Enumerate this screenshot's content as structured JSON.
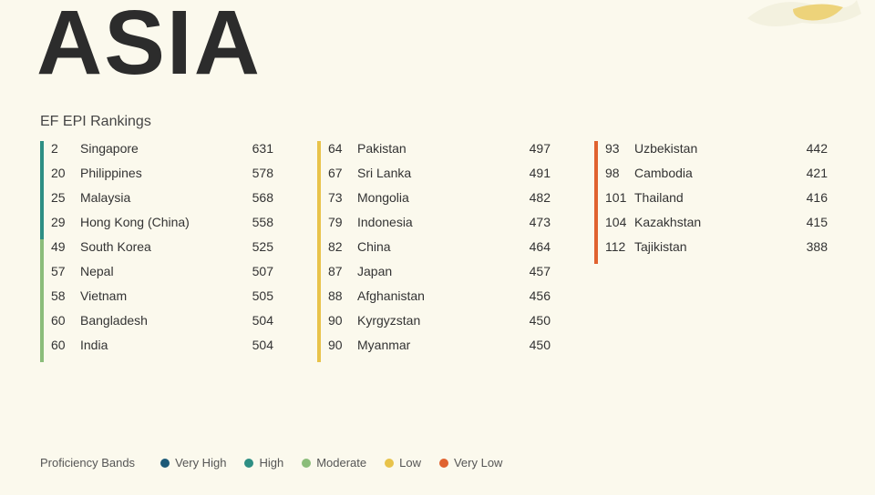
{
  "title": "ASIA",
  "subtitle": "EF EPI Rankings",
  "band_colors": {
    "very_high": "#1d5a78",
    "high": "#2e8f84",
    "moderate": "#8bbd7a",
    "low": "#e8c34a",
    "very_low": "#e0622f"
  },
  "columns": [
    {
      "groups": [
        {
          "band": "high",
          "rows": [
            {
              "rank": "2",
              "country": "Singapore",
              "score": "631"
            },
            {
              "rank": "20",
              "country": "Philippines",
              "score": "578"
            },
            {
              "rank": "25",
              "country": "Malaysia",
              "score": "568"
            },
            {
              "rank": "29",
              "country": "Hong Kong (China)",
              "score": "558"
            }
          ]
        },
        {
          "band": "moderate",
          "rows": [
            {
              "rank": "49",
              "country": "South Korea",
              "score": "525"
            },
            {
              "rank": "57",
              "country": "Nepal",
              "score": "507"
            },
            {
              "rank": "58",
              "country": "Vietnam",
              "score": "505"
            },
            {
              "rank": "60",
              "country": "Bangladesh",
              "score": "504"
            },
            {
              "rank": "60",
              "country": "India",
              "score": "504"
            }
          ]
        }
      ]
    },
    {
      "groups": [
        {
          "band": "low",
          "rows": [
            {
              "rank": "64",
              "country": "Pakistan",
              "score": "497"
            },
            {
              "rank": "67",
              "country": "Sri Lanka",
              "score": "491"
            },
            {
              "rank": "73",
              "country": "Mongolia",
              "score": "482"
            },
            {
              "rank": "79",
              "country": "Indonesia",
              "score": "473"
            },
            {
              "rank": "82",
              "country": "China",
              "score": "464"
            },
            {
              "rank": "87",
              "country": "Japan",
              "score": "457"
            },
            {
              "rank": "88",
              "country": "Afghanistan",
              "score": "456"
            },
            {
              "rank": "90",
              "country": "Kyrgyzstan",
              "score": "450"
            },
            {
              "rank": "90",
              "country": "Myanmar",
              "score": "450"
            }
          ]
        }
      ]
    },
    {
      "groups": [
        {
          "band": "very_low",
          "rows": [
            {
              "rank": "93",
              "country": "Uzbekistan",
              "score": "442"
            },
            {
              "rank": "98",
              "country": "Cambodia",
              "score": "421"
            },
            {
              "rank": "101",
              "country": "Thailand",
              "score": "416"
            },
            {
              "rank": "104",
              "country": "Kazakhstan",
              "score": "415"
            },
            {
              "rank": "112",
              "country": "Tajikistan",
              "score": "388"
            }
          ]
        }
      ]
    }
  ],
  "legend": {
    "label": "Proficiency Bands",
    "items": [
      {
        "band": "very_high",
        "text": "Very High"
      },
      {
        "band": "high",
        "text": "High"
      },
      {
        "band": "moderate",
        "text": "Moderate"
      },
      {
        "band": "low",
        "text": "Low"
      },
      {
        "band": "very_low",
        "text": "Very Low"
      }
    ]
  },
  "deco_colors": {
    "a": "#e8c34a",
    "b": "#f0eeda"
  }
}
